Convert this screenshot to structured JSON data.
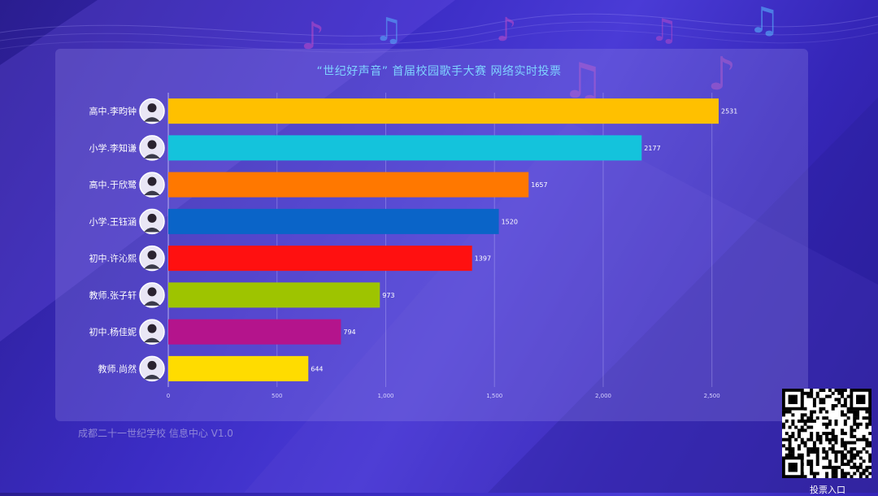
{
  "chart_data": {
    "type": "bar",
    "orientation": "horizontal",
    "title": "“世纪好声音” 首届校园歌手大赛 网络实时投票",
    "categories": [
      "高中.李昀钟",
      "小学.李知谦",
      "高中.于欣鹭",
      "小学.王钰涵",
      "初中.许沁熙",
      "教师.张子轩",
      "初中.杨佳妮",
      "教师.尚然"
    ],
    "values": [
      2531,
      2177,
      1657,
      1520,
      1397,
      973,
      794,
      644
    ],
    "colors": [
      "#ffc000",
      "#14c3dc",
      "#ff7800",
      "#0a64c8",
      "#ff1010",
      "#9ec400",
      "#b4148c",
      "#ffdc00"
    ],
    "xlim": [
      0,
      2600
    ],
    "xticks": [
      0,
      500,
      1000,
      1500,
      2000,
      2500
    ],
    "xtick_labels": [
      "0",
      "500",
      "1,000",
      "1,500",
      "2,000",
      "2,500"
    ],
    "grid": true,
    "xlabel": "",
    "ylabel": ""
  },
  "footer": {
    "text": "成都二十一世纪学校 信息中心 V1.0"
  },
  "qr": {
    "label": "投票入口"
  }
}
